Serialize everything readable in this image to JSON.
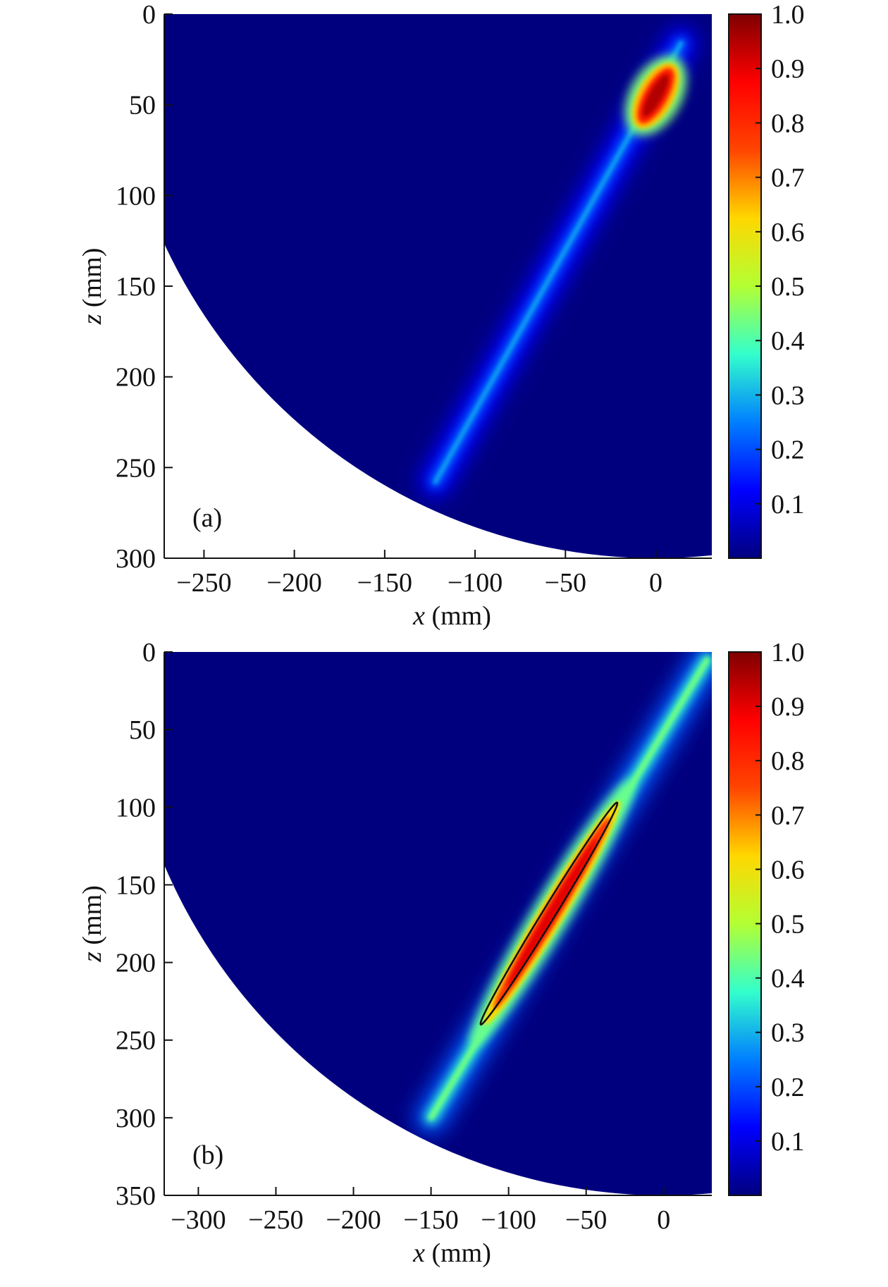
{
  "colormap": {
    "name": "jet",
    "stops": [
      "#00007f",
      "#0000ff",
      "#007fff",
      "#33ffcc",
      "#b3ff33",
      "#ffd700",
      "#ff4500",
      "#ff0000",
      "#7f0000"
    ]
  },
  "chart_data": [
    {
      "type": "heatmap",
      "panel_label": "(a)",
      "xlabel_var": "x",
      "xlabel_unit": " (mm)",
      "ylabel_var": "z",
      "ylabel_unit": " (mm)",
      "xlim": [
        -272,
        31
      ],
      "ylim": [
        0,
        300
      ],
      "y_inverted": true,
      "x_ticks": [
        -250,
        -200,
        -150,
        -100,
        -50,
        0
      ],
      "x_tick_labels": [
        "−250",
        "−200",
        "−150",
        "−100",
        "−50",
        "0"
      ],
      "y_ticks": [
        0,
        50,
        100,
        150,
        200,
        250,
        300
      ],
      "y_tick_labels": [
        "0",
        "50",
        "100",
        "150",
        "200",
        "250",
        "300"
      ],
      "domain_radius": 300,
      "beam": {
        "start": [
          -122,
          258
        ],
        "end": [
          14,
          16
        ],
        "base_intensity": 0.22
      },
      "hotspot": {
        "center": [
          0,
          45
        ],
        "length": 38,
        "width": 14,
        "peak": 1.0
      },
      "contour": null,
      "colorbar": {
        "range": [
          0,
          1.0
        ],
        "ticks": [
          0.1,
          0.2,
          0.3,
          0.4,
          0.5,
          0.6,
          0.7,
          0.8,
          0.9,
          1.0
        ],
        "tick_labels": [
          "0.1",
          "0.2",
          "0.3",
          "0.4",
          "0.5",
          "0.6",
          "0.7",
          "0.8",
          "0.9",
          "1.0"
        ]
      }
    },
    {
      "type": "heatmap",
      "panel_label": "(b)",
      "xlabel_var": "x",
      "xlabel_unit": " (mm)",
      "ylabel_var": "z",
      "ylabel_unit": " (mm)",
      "xlim": [
        -322,
        31
      ],
      "ylim": [
        0,
        350
      ],
      "y_inverted": true,
      "x_ticks": [
        -300,
        -250,
        -200,
        -150,
        -100,
        -50,
        0
      ],
      "x_tick_labels": [
        "−300",
        "−250",
        "−200",
        "−150",
        "−100",
        "−50",
        "0"
      ],
      "y_ticks": [
        0,
        50,
        100,
        150,
        200,
        250,
        300,
        350
      ],
      "y_tick_labels": [
        "0",
        "50",
        "100",
        "150",
        "200",
        "250",
        "300",
        "350"
      ],
      "domain_radius": 350,
      "beam": {
        "start": [
          -150,
          300
        ],
        "end": [
          28,
          5
        ],
        "base_intensity": 0.38
      },
      "hotspot": {
        "center": [
          -72,
          168
        ],
        "length": 160,
        "width": 10,
        "peak": 0.95
      },
      "contour": {
        "start": [
          -118,
          240
        ],
        "end": [
          -30,
          97
        ]
      },
      "colorbar": {
        "range": [
          0,
          1.0
        ],
        "ticks": [
          0.1,
          0.2,
          0.3,
          0.4,
          0.5,
          0.6,
          0.7,
          0.8,
          0.9,
          1.0
        ],
        "tick_labels": [
          "0.1",
          "0.2",
          "0.3",
          "0.4",
          "0.5",
          "0.6",
          "0.7",
          "0.8",
          "0.9",
          "1.0"
        ]
      }
    }
  ]
}
